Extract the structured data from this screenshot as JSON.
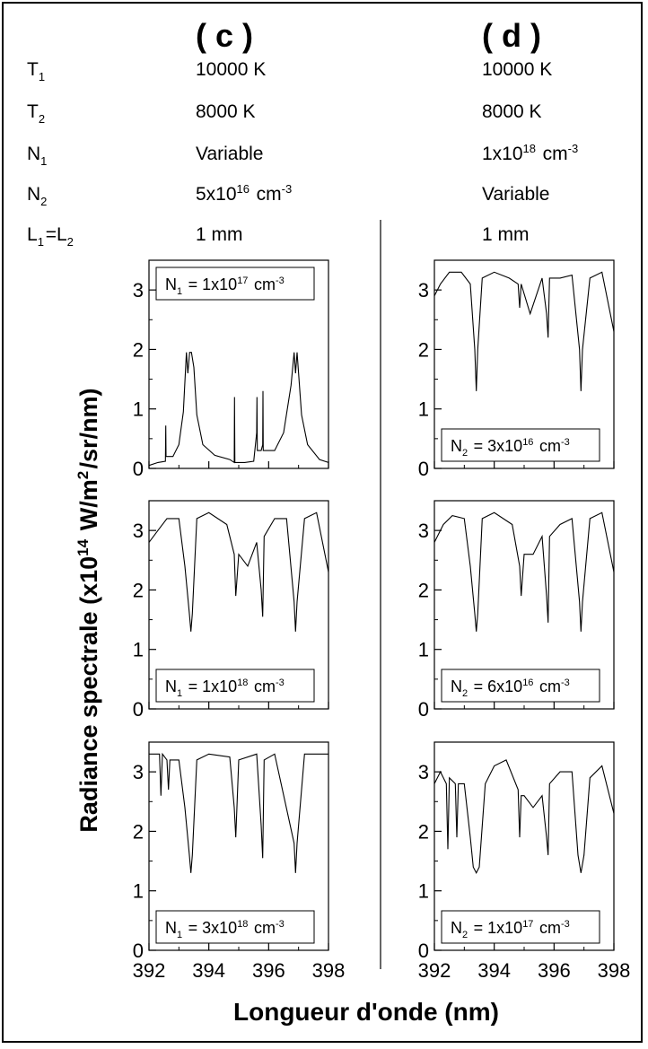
{
  "header": {
    "columns": [
      {
        "label": "( c )",
        "values": [
          "10000 K",
          "8000 K",
          "Variable",
          "5x10^16 cm^-3",
          "1 mm"
        ]
      },
      {
        "label": "( d )",
        "values": [
          "10000 K",
          "8000 K",
          "1x10^18 cm^-3",
          "Variable",
          "1 mm"
        ]
      }
    ],
    "params": [
      "T_1",
      "T_2",
      "N_1",
      "N_2",
      "L_1=L_2"
    ]
  },
  "chart_data": {
    "type": "line",
    "ylabel": "Radiance spectrale (x10^14 W/m^2/sr/nm)",
    "xlabel": "Longueur d'onde (nm)",
    "xlim": [
      392,
      398
    ],
    "ylim": [
      0,
      3.5
    ],
    "xticks": [
      392,
      394,
      396,
      398
    ],
    "yticks": [
      0,
      1,
      2,
      3
    ],
    "panels": [
      {
        "column": "c",
        "row": 0,
        "legend": "N_1 = 1x10^17 cm^-3",
        "legend_pos": "top",
        "x": [
          392.0,
          392.3,
          392.55,
          392.56,
          392.57,
          392.8,
          393.0,
          393.15,
          393.25,
          393.3,
          393.36,
          393.42,
          393.5,
          393.6,
          393.8,
          394.2,
          394.7,
          394.85,
          394.86,
          394.87,
          395.2,
          395.5,
          395.6,
          395.61,
          395.62,
          395.75,
          395.8,
          395.81,
          395.82,
          396.2,
          396.5,
          396.75,
          396.85,
          396.9,
          396.95,
          397.1,
          397.3,
          397.7,
          398.0
        ],
        "y": [
          0.05,
          0.1,
          0.12,
          0.72,
          0.2,
          0.2,
          0.4,
          0.95,
          1.95,
          1.6,
          1.95,
          1.95,
          1.7,
          0.9,
          0.4,
          0.22,
          0.15,
          0.1,
          1.2,
          0.1,
          0.1,
          0.12,
          0.6,
          1.2,
          0.3,
          0.3,
          0.4,
          1.3,
          0.3,
          0.3,
          0.6,
          1.4,
          1.95,
          1.6,
          1.95,
          0.9,
          0.4,
          0.15,
          0.1
        ]
      },
      {
        "column": "d",
        "row": 0,
        "legend": "N_2 = 3x10^16 cm^-3",
        "legend_pos": "bottom",
        "x": [
          392.0,
          392.2,
          392.5,
          392.9,
          393.2,
          393.35,
          393.4,
          393.45,
          393.6,
          394.0,
          394.5,
          394.8,
          394.85,
          394.9,
          395.2,
          395.6,
          395.75,
          395.8,
          395.85,
          396.2,
          396.6,
          396.85,
          396.9,
          396.95,
          397.2,
          397.6,
          398.0
        ],
        "y": [
          2.9,
          3.1,
          3.3,
          3.3,
          3.1,
          2.0,
          1.3,
          2.0,
          3.2,
          3.3,
          3.2,
          3.1,
          2.7,
          3.1,
          2.6,
          3.2,
          2.6,
          2.2,
          3.2,
          3.2,
          3.25,
          2.0,
          1.3,
          2.0,
          3.2,
          3.3,
          2.3
        ]
      },
      {
        "column": "c",
        "row": 1,
        "legend": "N_1 = 1x10^18 cm^-3",
        "legend_pos": "bottom",
        "x": [
          392.0,
          392.3,
          392.6,
          393.0,
          393.2,
          393.35,
          393.4,
          393.45,
          393.6,
          394.0,
          394.6,
          394.85,
          394.9,
          395.0,
          395.3,
          395.6,
          395.75,
          395.8,
          395.85,
          396.2,
          396.6,
          396.85,
          396.9,
          396.95,
          397.2,
          397.6,
          398.0
        ],
        "y": [
          2.8,
          3.0,
          3.2,
          3.2,
          2.4,
          1.6,
          1.3,
          1.6,
          3.2,
          3.3,
          3.1,
          2.6,
          1.9,
          2.6,
          2.4,
          2.8,
          2.0,
          1.55,
          2.9,
          3.2,
          3.2,
          1.8,
          1.3,
          1.8,
          3.2,
          3.3,
          2.3
        ]
      },
      {
        "column": "d",
        "row": 1,
        "legend": "N_2 = 6x10^16 cm^-3",
        "legend_pos": "bottom",
        "x": [
          392.0,
          392.3,
          392.6,
          393.0,
          393.2,
          393.35,
          393.4,
          393.45,
          393.6,
          394.0,
          394.6,
          394.85,
          394.9,
          395.0,
          395.3,
          395.6,
          395.75,
          395.8,
          395.85,
          396.2,
          396.6,
          396.85,
          396.9,
          396.95,
          397.2,
          397.6,
          398.0
        ],
        "y": [
          2.8,
          3.1,
          3.25,
          3.2,
          2.4,
          1.6,
          1.3,
          1.6,
          3.2,
          3.3,
          3.1,
          2.4,
          1.9,
          2.6,
          2.6,
          2.9,
          1.9,
          1.45,
          2.9,
          3.1,
          3.2,
          1.8,
          1.3,
          1.8,
          3.2,
          3.3,
          2.3
        ]
      },
      {
        "column": "c",
        "row": 2,
        "legend": "N_1 = 3x10^18 cm^-3",
        "legend_pos": "bottom",
        "x": [
          392.0,
          392.2,
          392.35,
          392.4,
          392.45,
          392.6,
          392.65,
          392.7,
          393.0,
          393.2,
          393.35,
          393.4,
          393.45,
          393.6,
          394.0,
          394.7,
          394.85,
          394.9,
          395.0,
          395.6,
          395.75,
          395.8,
          395.85,
          396.2,
          396.85,
          396.9,
          396.95,
          397.2,
          398.0
        ],
        "y": [
          3.3,
          3.3,
          3.3,
          2.6,
          3.3,
          3.2,
          2.7,
          3.2,
          3.2,
          2.4,
          1.6,
          1.3,
          1.6,
          3.2,
          3.3,
          3.25,
          2.4,
          1.9,
          3.2,
          3.3,
          2.1,
          1.55,
          3.2,
          3.3,
          1.8,
          1.3,
          1.8,
          3.3,
          3.3
        ]
      },
      {
        "column": "d",
        "row": 2,
        "legend": "N_2 = 1x10^17 cm^-3",
        "legend_pos": "bottom",
        "x": [
          392.0,
          392.2,
          392.4,
          392.45,
          392.5,
          392.7,
          392.75,
          392.8,
          393.0,
          393.2,
          393.3,
          393.4,
          393.5,
          393.7,
          394.0,
          394.4,
          394.8,
          394.85,
          394.9,
          395.0,
          395.3,
          395.6,
          395.75,
          395.8,
          395.85,
          396.2,
          396.6,
          396.8,
          396.9,
          397.0,
          397.2,
          397.6,
          398.0
        ],
        "y": [
          2.8,
          3.0,
          2.8,
          1.7,
          2.9,
          2.8,
          1.9,
          2.8,
          2.8,
          1.9,
          1.4,
          1.3,
          1.4,
          2.8,
          3.1,
          3.2,
          2.7,
          1.9,
          2.6,
          2.6,
          2.4,
          2.6,
          1.9,
          1.6,
          2.8,
          3.0,
          3.0,
          1.6,
          1.3,
          1.6,
          2.9,
          3.1,
          2.3
        ]
      }
    ]
  }
}
